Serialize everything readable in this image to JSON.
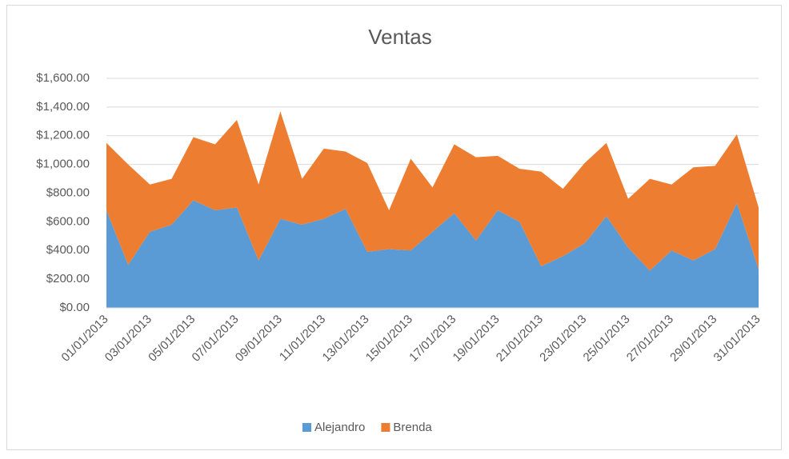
{
  "chart_data": {
    "type": "stacked_area",
    "title": "Ventas",
    "categories": [
      "01/01/2013",
      null,
      "03/01/2013",
      null,
      "05/01/2013",
      null,
      "07/01/2013",
      null,
      "09/01/2013",
      null,
      "11/01/2013",
      null,
      "13/01/2013",
      null,
      "15/01/2013",
      null,
      "17/01/2013",
      null,
      "19/01/2013",
      null,
      "21/01/2013",
      null,
      "23/01/2013",
      null,
      "25/01/2013",
      null,
      "27/01/2013",
      null,
      "29/01/2013",
      null,
      "31/01/2013"
    ],
    "series": [
      {
        "name": "Alejandro",
        "color": "#5b9bd5",
        "values": [
          680,
          300,
          530,
          580,
          750,
          680,
          700,
          330,
          620,
          580,
          620,
          690,
          390,
          410,
          400,
          530,
          660,
          470,
          680,
          600,
          290,
          360,
          450,
          640,
          420,
          260,
          400,
          330,
          410,
          730,
          270
        ]
      },
      {
        "name": "Brenda",
        "color": "#ed7d31",
        "values": [
          470,
          700,
          330,
          320,
          440,
          460,
          610,
          530,
          750,
          320,
          490,
          400,
          620,
          270,
          640,
          310,
          480,
          580,
          380,
          370,
          660,
          470,
          560,
          510,
          340,
          640,
          460,
          650,
          580,
          480,
          430
        ]
      }
    ],
    "ylim": [
      0,
      1600
    ],
    "yticks": [
      {
        "value": 0,
        "label": "$0.00"
      },
      {
        "value": 200,
        "label": "$200.00"
      },
      {
        "value": 400,
        "label": "$400.00"
      },
      {
        "value": 600,
        "label": "$600.00"
      },
      {
        "value": 800,
        "label": "$800.00"
      },
      {
        "value": 1000,
        "label": "$1,000.00"
      },
      {
        "value": 1200,
        "label": "$1,200.00"
      },
      {
        "value": 1400,
        "label": "$1,400.00"
      },
      {
        "value": 1600,
        "label": "$1,600.00"
      }
    ],
    "grid": true,
    "legend": "bottom"
  }
}
